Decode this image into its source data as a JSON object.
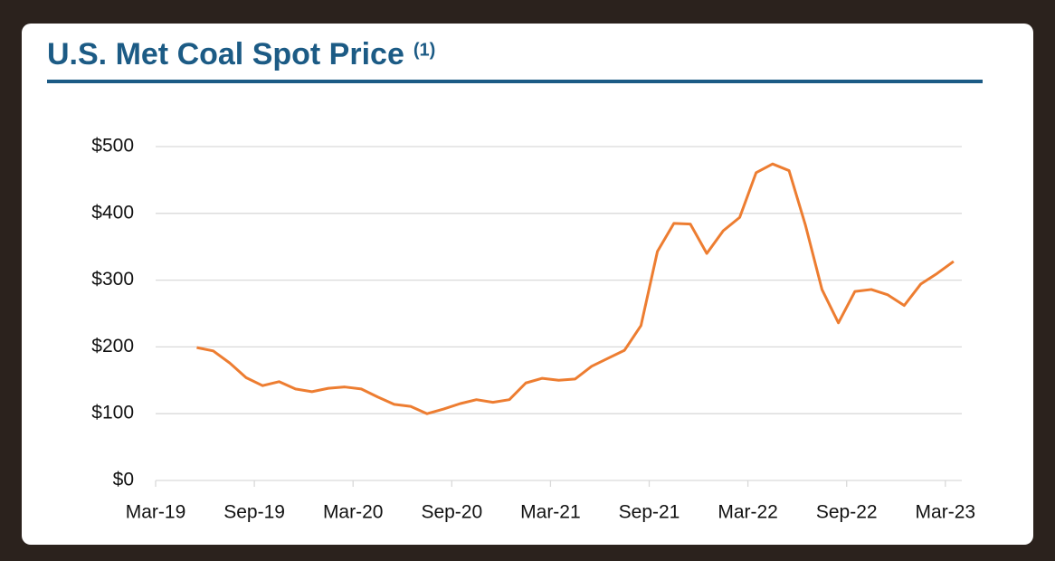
{
  "chart_data": {
    "type": "line",
    "title": "U.S. Met Coal Spot Price",
    "title_note": "(1)",
    "x": [
      2.5,
      3.5,
      4.5,
      5.5,
      6.5,
      7.5,
      8.5,
      9.5,
      10.5,
      11.5,
      12.5,
      13.5,
      14.5,
      15.5,
      16.5,
      17.5,
      18.5,
      19.5,
      20.5,
      21.5,
      22.5,
      23.5,
      24.5,
      25.5,
      26.5,
      27.5,
      28.5,
      29.5,
      30.5,
      31.5,
      32.5,
      33.5,
      34.5,
      35.5,
      36.5,
      37.5,
      38.5,
      39.5,
      40.5,
      41.5,
      42.5,
      43.5,
      44.5,
      45.5,
      46.5,
      47.5,
      48.5
    ],
    "series": [
      {
        "name": "U.S. Met Coal Spot Price",
        "color": "#ed7d31",
        "values": [
          199,
          194,
          176,
          154,
          142,
          148,
          137,
          133,
          138,
          140,
          137,
          125,
          114,
          111,
          100,
          107,
          115,
          121,
          117,
          121,
          146,
          153,
          150,
          152,
          171,
          183,
          195,
          232,
          343,
          385,
          384,
          340,
          374,
          394,
          461,
          474,
          464,
          382,
          286,
          236,
          283,
          286,
          278,
          262,
          294,
          310,
          328
        ]
      }
    ],
    "xlim": [
      0,
      49
    ],
    "xticks": [
      {
        "value": 0,
        "label": "Mar-19"
      },
      {
        "value": 6,
        "label": "Sep-19"
      },
      {
        "value": 12,
        "label": "Mar-20"
      },
      {
        "value": 18,
        "label": "Sep-20"
      },
      {
        "value": 24,
        "label": "Mar-21"
      },
      {
        "value": 30,
        "label": "Sep-21"
      },
      {
        "value": 36,
        "label": "Mar-22"
      },
      {
        "value": 42,
        "label": "Sep-22"
      },
      {
        "value": 48,
        "label": "Mar-23"
      }
    ],
    "ylim": [
      0,
      500
    ],
    "yticks": [
      {
        "value": 0,
        "label": "$0"
      },
      {
        "value": 100,
        "label": "$100"
      },
      {
        "value": 200,
        "label": "$200"
      },
      {
        "value": 300,
        "label": "$300"
      },
      {
        "value": 400,
        "label": "$400"
      },
      {
        "value": 500,
        "label": "$500"
      }
    ],
    "grid": true
  }
}
